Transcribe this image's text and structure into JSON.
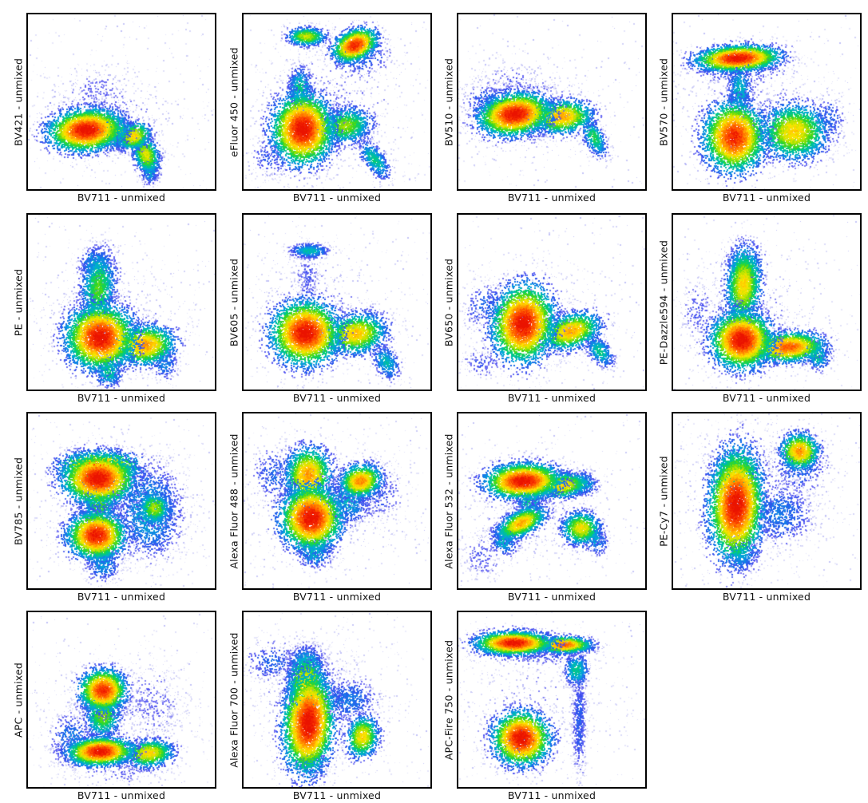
{
  "figure": {
    "description": "Grid of 15 flow-cytometry pseudocolor density dot plots (unmixed spillover views), 4 columns x 4 rows, last grid cell empty",
    "shared_x_label": "BV711 - unmixed"
  },
  "chart_data": {
    "type": "scatter",
    "subtype": "flow-cytometry-pseudocolor-density",
    "grid": "off",
    "ticks": "none",
    "axis_numbers_visible": false,
    "xlabel": "BV711 - unmixed",
    "colormap_low_to_high": [
      "#e8e8f8",
      "#4242f0",
      "#1c6eeb",
      "#00aad8",
      "#00cd78",
      "#3cd71e",
      "#b4e400",
      "#ffe400",
      "#ffa000",
      "#ff5c00",
      "#f52800",
      "#e40800"
    ],
    "population_format": [
      "cx_frac",
      "cy_frac_from_top",
      "sigma_x_frac",
      "sigma_y_frac",
      "rotation_deg",
      "peak_density_0to1",
      "n_events"
    ],
    "panels": [
      {
        "y_label": "BV421 - unmixed",
        "x_label": "BV711 - unmixed",
        "populations": [
          [
            0.4,
            0.6,
            0.25,
            0.17,
            0,
            0.13,
            500
          ],
          [
            0.38,
            0.45,
            0.12,
            0.08,
            0,
            0.15,
            250
          ],
          [
            0.31,
            0.66,
            0.105,
            0.062,
            -5,
            1.0,
            3000
          ],
          [
            0.475,
            0.68,
            0.05,
            0.045,
            0,
            0.62,
            650
          ],
          [
            0.565,
            0.695,
            0.05,
            0.04,
            -25,
            0.72,
            700
          ],
          [
            0.63,
            0.8,
            0.035,
            0.06,
            -20,
            0.68,
            800
          ],
          [
            0.65,
            0.895,
            0.025,
            0.04,
            0,
            0.4,
            280
          ]
        ]
      },
      {
        "y_label": "eFluor 450 - unmixed",
        "x_label": "BV711 - unmixed",
        "populations": [
          [
            0.42,
            0.55,
            0.27,
            0.24,
            0,
            0.13,
            700
          ],
          [
            0.335,
            0.125,
            0.055,
            0.028,
            0,
            0.65,
            650
          ],
          [
            0.595,
            0.175,
            0.065,
            0.045,
            -25,
            0.95,
            1400
          ],
          [
            0.62,
            0.23,
            0.09,
            0.07,
            0,
            0.28,
            350
          ],
          [
            0.3,
            0.42,
            0.035,
            0.065,
            0,
            0.45,
            500
          ],
          [
            0.315,
            0.655,
            0.085,
            0.105,
            0,
            1.0,
            3600
          ],
          [
            0.545,
            0.635,
            0.075,
            0.055,
            -10,
            0.6,
            1200
          ],
          [
            0.7,
            0.83,
            0.03,
            0.07,
            -35,
            0.45,
            450
          ],
          [
            0.14,
            0.82,
            0.07,
            0.07,
            0,
            0.2,
            200
          ]
        ]
      },
      {
        "y_label": "BV510 - unmixed",
        "x_label": "BV711 - unmixed",
        "populations": [
          [
            0.35,
            0.55,
            0.24,
            0.17,
            0,
            0.13,
            600
          ],
          [
            0.17,
            0.5,
            0.08,
            0.06,
            0,
            0.28,
            280
          ],
          [
            0.3,
            0.57,
            0.1,
            0.062,
            -8,
            1.0,
            3100
          ],
          [
            0.555,
            0.585,
            0.085,
            0.05,
            -5,
            0.78,
            1400
          ],
          [
            0.725,
            0.7,
            0.028,
            0.065,
            -25,
            0.5,
            420
          ],
          [
            0.28,
            0.37,
            0.1,
            0.05,
            0,
            0.15,
            150
          ]
        ]
      },
      {
        "y_label": "BV570 - unmixed",
        "x_label": "BV711 - unmixed",
        "populations": [
          [
            0.4,
            0.55,
            0.25,
            0.2,
            0,
            0.12,
            550
          ],
          [
            0.345,
            0.25,
            0.115,
            0.038,
            -3,
            1.0,
            2500
          ],
          [
            0.35,
            0.29,
            0.15,
            0.06,
            0,
            0.28,
            380
          ],
          [
            0.355,
            0.43,
            0.035,
            0.085,
            0,
            0.4,
            550
          ],
          [
            0.325,
            0.7,
            0.085,
            0.105,
            0,
            0.95,
            2900
          ],
          [
            0.645,
            0.67,
            0.095,
            0.085,
            0,
            0.72,
            2000
          ],
          [
            0.83,
            0.6,
            0.05,
            0.08,
            0,
            0.25,
            230
          ]
        ]
      },
      {
        "y_label": "PE - unmixed",
        "x_label": "BV711 - unmixed",
        "populations": [
          [
            0.42,
            0.6,
            0.26,
            0.2,
            0,
            0.12,
            550
          ],
          [
            0.375,
            0.42,
            0.05,
            0.115,
            5,
            0.55,
            1300
          ],
          [
            0.36,
            0.28,
            0.045,
            0.05,
            0,
            0.4,
            380
          ],
          [
            0.385,
            0.7,
            0.095,
            0.095,
            0,
            1.0,
            3400
          ],
          [
            0.625,
            0.745,
            0.085,
            0.06,
            -5,
            0.8,
            1600
          ],
          [
            0.43,
            0.895,
            0.04,
            0.05,
            0,
            0.45,
            380
          ],
          [
            0.73,
            0.85,
            0.04,
            0.05,
            0,
            0.3,
            230
          ]
        ]
      },
      {
        "y_label": "BV605 - unmixed",
        "x_label": "BV711 - unmixed",
        "populations": [
          [
            0.4,
            0.55,
            0.25,
            0.21,
            0,
            0.12,
            550
          ],
          [
            0.35,
            0.205,
            0.055,
            0.022,
            0,
            0.42,
            420
          ],
          [
            0.34,
            0.35,
            0.04,
            0.08,
            0,
            0.17,
            190
          ],
          [
            0.33,
            0.675,
            0.095,
            0.095,
            0,
            1.0,
            3300
          ],
          [
            0.6,
            0.68,
            0.085,
            0.06,
            -10,
            0.75,
            1500
          ],
          [
            0.76,
            0.84,
            0.035,
            0.06,
            -30,
            0.4,
            380
          ]
        ]
      },
      {
        "y_label": "BV650 - unmixed",
        "x_label": "BV711 - unmixed",
        "populations": [
          [
            0.38,
            0.6,
            0.24,
            0.19,
            0,
            0.12,
            550
          ],
          [
            0.15,
            0.52,
            0.07,
            0.07,
            0,
            0.25,
            240
          ],
          [
            0.345,
            0.62,
            0.085,
            0.115,
            8,
            1.0,
            3400
          ],
          [
            0.6,
            0.665,
            0.085,
            0.052,
            -18,
            0.78,
            1400
          ],
          [
            0.755,
            0.78,
            0.03,
            0.055,
            -35,
            0.45,
            380
          ],
          [
            0.12,
            0.85,
            0.06,
            0.05,
            0,
            0.18,
            140
          ]
        ]
      },
      {
        "y_label": "PE-Dazzle594 - unmixed",
        "x_label": "BV711 - unmixed",
        "populations": [
          [
            0.4,
            0.6,
            0.25,
            0.21,
            0,
            0.12,
            550
          ],
          [
            0.375,
            0.4,
            0.05,
            0.115,
            3,
            0.72,
            1900
          ],
          [
            0.375,
            0.295,
            0.04,
            0.04,
            0,
            0.5,
            300
          ],
          [
            0.365,
            0.715,
            0.085,
            0.085,
            0,
            1.0,
            3200
          ],
          [
            0.615,
            0.755,
            0.1,
            0.045,
            -3,
            0.88,
            1900
          ],
          [
            0.765,
            0.8,
            0.035,
            0.05,
            -30,
            0.45,
            330
          ],
          [
            0.13,
            0.55,
            0.05,
            0.1,
            0,
            0.18,
            190
          ]
        ]
      },
      {
        "y_label": "BV785 - unmixed",
        "x_label": "BV711 - unmixed",
        "populations": [
          [
            0.45,
            0.55,
            0.26,
            0.21,
            0,
            0.12,
            650
          ],
          [
            0.38,
            0.3,
            0.115,
            0.045,
            0,
            0.9,
            1200
          ],
          [
            0.375,
            0.37,
            0.1,
            0.075,
            0,
            1.0,
            2800
          ],
          [
            0.38,
            0.52,
            0.05,
            0.06,
            10,
            0.55,
            750
          ],
          [
            0.365,
            0.695,
            0.08,
            0.07,
            0,
            0.98,
            2400
          ],
          [
            0.4,
            0.85,
            0.05,
            0.06,
            10,
            0.35,
            380
          ],
          [
            0.645,
            0.56,
            0.095,
            0.14,
            0,
            0.38,
            1700
          ],
          [
            0.675,
            0.54,
            0.045,
            0.05,
            0,
            0.62,
            480
          ]
        ]
      },
      {
        "y_label": "Alexa Fluor 488 - unmixed",
        "x_label": "BV711 - unmixed",
        "populations": [
          [
            0.42,
            0.5,
            0.26,
            0.21,
            0,
            0.12,
            650
          ],
          [
            0.345,
            0.35,
            0.065,
            0.085,
            3,
            0.8,
            1700
          ],
          [
            0.36,
            0.595,
            0.085,
            0.095,
            3,
            1.0,
            3000
          ],
          [
            0.625,
            0.385,
            0.06,
            0.05,
            -15,
            0.82,
            1200
          ],
          [
            0.55,
            0.5,
            0.07,
            0.07,
            0,
            0.38,
            650
          ],
          [
            0.72,
            0.45,
            0.08,
            0.1,
            0,
            0.2,
            280
          ],
          [
            0.38,
            0.79,
            0.05,
            0.05,
            0,
            0.4,
            380
          ],
          [
            0.17,
            0.35,
            0.07,
            0.09,
            0,
            0.25,
            280
          ]
        ]
      },
      {
        "y_label": "Alexa Fluor 532 - unmixed",
        "x_label": "BV711 - unmixed",
        "populations": [
          [
            0.4,
            0.55,
            0.26,
            0.21,
            0,
            0.11,
            550
          ],
          [
            0.345,
            0.385,
            0.105,
            0.052,
            -2,
            1.0,
            2800
          ],
          [
            0.555,
            0.41,
            0.075,
            0.038,
            -8,
            0.72,
            950
          ],
          [
            0.665,
            0.4,
            0.04,
            0.035,
            0,
            0.45,
            280
          ],
          [
            0.38,
            0.5,
            0.04,
            0.05,
            15,
            0.45,
            380
          ],
          [
            0.335,
            0.625,
            0.075,
            0.038,
            -28,
            0.78,
            1200
          ],
          [
            0.24,
            0.72,
            0.04,
            0.05,
            -20,
            0.4,
            330
          ],
          [
            0.655,
            0.655,
            0.055,
            0.05,
            0,
            0.7,
            850
          ],
          [
            0.73,
            0.72,
            0.035,
            0.05,
            -30,
            0.35,
            230
          ],
          [
            0.13,
            0.82,
            0.06,
            0.07,
            0,
            0.17,
            190
          ]
        ]
      },
      {
        "y_label": "PE-Cy7 - unmixed",
        "x_label": "BV711 - unmixed",
        "populations": [
          [
            0.45,
            0.45,
            0.27,
            0.24,
            0,
            0.12,
            750
          ],
          [
            0.33,
            0.33,
            0.06,
            0.06,
            0,
            0.6,
            750
          ],
          [
            0.335,
            0.52,
            0.075,
            0.165,
            2,
            1.0,
            4000
          ],
          [
            0.675,
            0.215,
            0.055,
            0.055,
            0,
            0.8,
            950
          ],
          [
            0.67,
            0.29,
            0.08,
            0.09,
            0,
            0.28,
            380
          ],
          [
            0.57,
            0.57,
            0.09,
            0.1,
            0,
            0.28,
            750
          ],
          [
            0.36,
            0.8,
            0.05,
            0.06,
            0,
            0.35,
            380
          ]
        ]
      },
      {
        "y_label": "APC - unmixed",
        "x_label": "BV711 - unmixed",
        "populations": [
          [
            0.45,
            0.6,
            0.26,
            0.19,
            0,
            0.11,
            550
          ],
          [
            0.4,
            0.445,
            0.065,
            0.062,
            0,
            0.95,
            1900
          ],
          [
            0.4,
            0.585,
            0.05,
            0.07,
            0,
            0.6,
            950
          ],
          [
            0.385,
            0.795,
            0.09,
            0.042,
            -2,
            1.0,
            2500
          ],
          [
            0.645,
            0.805,
            0.07,
            0.042,
            -5,
            0.72,
            1150
          ],
          [
            0.66,
            0.52,
            0.1,
            0.13,
            0,
            0.14,
            480
          ],
          [
            0.23,
            0.72,
            0.06,
            0.08,
            15,
            0.3,
            330
          ],
          [
            0.5,
            0.92,
            0.15,
            0.04,
            0,
            0.14,
            190
          ]
        ]
      },
      {
        "y_label": "Alexa Fluor 700 - unmixed",
        "x_label": "BV711 - unmixed",
        "populations": [
          [
            0.4,
            0.5,
            0.26,
            0.23,
            0,
            0.12,
            650
          ],
          [
            0.335,
            0.4,
            0.055,
            0.09,
            0,
            0.7,
            1300
          ],
          [
            0.33,
            0.28,
            0.05,
            0.05,
            0,
            0.4,
            480
          ],
          [
            0.345,
            0.63,
            0.07,
            0.15,
            3,
            1.0,
            3800
          ],
          [
            0.635,
            0.71,
            0.045,
            0.065,
            10,
            0.72,
            850
          ],
          [
            0.565,
            0.5,
            0.08,
            0.07,
            0,
            0.28,
            550
          ],
          [
            0.15,
            0.28,
            0.08,
            0.06,
            0,
            0.25,
            280
          ],
          [
            0.36,
            0.86,
            0.05,
            0.04,
            0,
            0.35,
            280
          ]
        ]
      },
      {
        "y_label": "APC-Fire 750 - unmixed",
        "x_label": "BV711 - unmixed",
        "populations": [
          [
            0.4,
            0.5,
            0.25,
            0.21,
            0,
            0.1,
            450
          ],
          [
            0.295,
            0.175,
            0.105,
            0.035,
            0,
            1.0,
            2400
          ],
          [
            0.565,
            0.185,
            0.075,
            0.025,
            0,
            0.88,
            1300
          ],
          [
            0.42,
            0.21,
            0.18,
            0.05,
            0,
            0.26,
            450
          ],
          [
            0.63,
            0.33,
            0.035,
            0.05,
            0,
            0.45,
            420
          ],
          [
            0.645,
            0.62,
            0.022,
            0.18,
            0,
            0.22,
            650
          ],
          [
            0.335,
            0.72,
            0.08,
            0.08,
            0,
            1.0,
            2400
          ],
          [
            0.33,
            0.75,
            0.11,
            0.1,
            0,
            0.22,
            350
          ]
        ]
      }
    ]
  }
}
